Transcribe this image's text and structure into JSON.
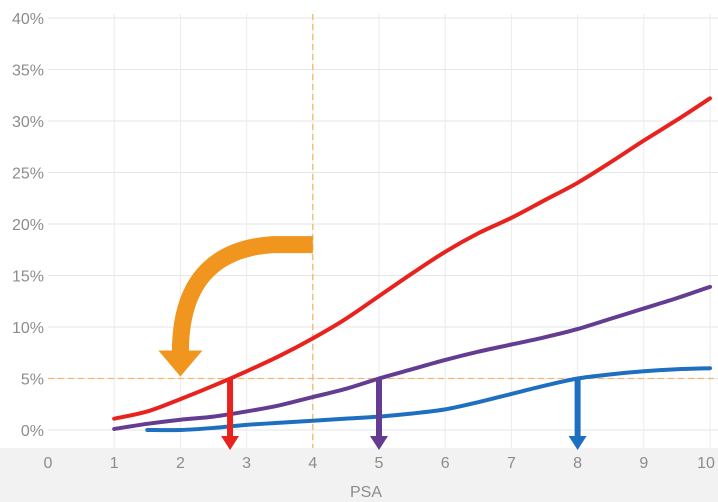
{
  "chart_data": {
    "type": "line",
    "title": "",
    "xlabel": "PSA",
    "ylabel": "",
    "xlim": [
      0,
      10
    ],
    "ylim": [
      0,
      40
    ],
    "x_ticks": [
      "0",
      "1",
      "2",
      "3",
      "4",
      "5",
      "6",
      "7",
      "8",
      "9",
      "10"
    ],
    "y_ticks": [
      "0%",
      "5%",
      "10%",
      "15%",
      "20%",
      "25%",
      "30%",
      "35%",
      "40%"
    ],
    "grid": true,
    "series": [
      {
        "color": "#e8231e",
        "points": [
          [
            1,
            1.1
          ],
          [
            1.5,
            1.8
          ],
          [
            2,
            3.0
          ],
          [
            2.5,
            4.3
          ],
          [
            3,
            5.7
          ],
          [
            3.5,
            7.2
          ],
          [
            4,
            8.9
          ],
          [
            4.5,
            10.8
          ],
          [
            5,
            13.0
          ],
          [
            5.5,
            15.2
          ],
          [
            6,
            17.3
          ],
          [
            6.5,
            19.1
          ],
          [
            7,
            20.6
          ],
          [
            7.5,
            22.3
          ],
          [
            8,
            24.0
          ],
          [
            8.5,
            26.0
          ],
          [
            9,
            28.1
          ],
          [
            9.5,
            30.1
          ],
          [
            10,
            32.2
          ]
        ]
      },
      {
        "color": "#643c92",
        "points": [
          [
            1,
            0.1
          ],
          [
            1.5,
            0.6
          ],
          [
            2,
            1.0
          ],
          [
            2.5,
            1.3
          ],
          [
            3,
            1.8
          ],
          [
            3.5,
            2.4
          ],
          [
            4,
            3.2
          ],
          [
            4.5,
            4.0
          ],
          [
            5,
            5.0
          ],
          [
            5.5,
            5.9
          ],
          [
            6,
            6.8
          ],
          [
            6.5,
            7.6
          ],
          [
            7,
            8.3
          ],
          [
            7.5,
            9.0
          ],
          [
            8,
            9.8
          ],
          [
            8.5,
            10.8
          ],
          [
            9,
            11.8
          ],
          [
            9.5,
            12.8
          ],
          [
            10,
            13.9
          ]
        ]
      },
      {
        "color": "#1f6fc1",
        "points": [
          [
            1.5,
            0.0
          ],
          [
            2,
            0.0
          ],
          [
            2.5,
            0.2
          ],
          [
            3,
            0.5
          ],
          [
            3.5,
            0.7
          ],
          [
            4,
            0.9
          ],
          [
            4.5,
            1.1
          ],
          [
            5,
            1.3
          ],
          [
            5.5,
            1.6
          ],
          [
            6,
            2.0
          ],
          [
            6.5,
            2.7
          ],
          [
            7,
            3.5
          ],
          [
            7.5,
            4.3
          ],
          [
            8,
            5.0
          ],
          [
            8.5,
            5.4
          ],
          [
            9,
            5.7
          ],
          [
            9.5,
            5.9
          ],
          [
            10,
            6.0
          ]
        ]
      }
    ],
    "reference_lines": {
      "y": 5,
      "x": 4,
      "color": "#f3b76b"
    },
    "threshold_arrows": [
      {
        "x": 2.75,
        "color": "#e8231e"
      },
      {
        "x": 5,
        "color": "#643c92"
      },
      {
        "x": 8,
        "color": "#1f6fc1"
      }
    ],
    "annotation_arrow": {
      "color": "#f0951e",
      "from": [
        4,
        18
      ],
      "to": [
        2,
        5
      ]
    }
  }
}
